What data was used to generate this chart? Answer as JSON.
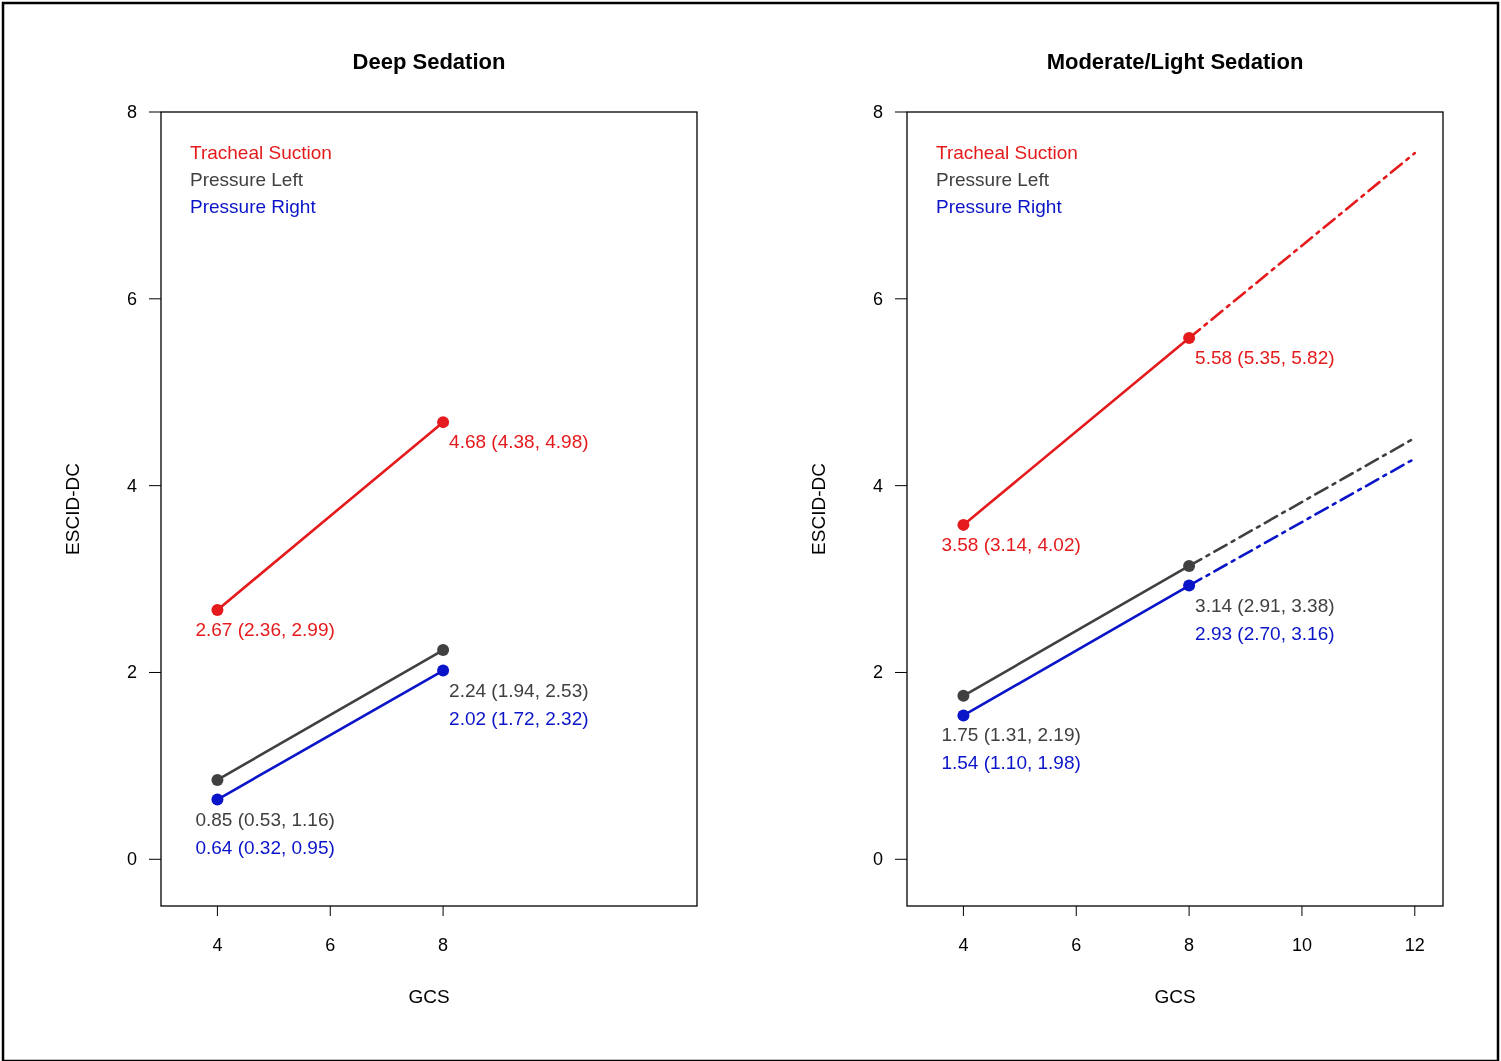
{
  "chart_data": [
    {
      "type": "line",
      "title": "Deep Sedation",
      "xlabel": "GCS",
      "ylabel": "ESCID-DC",
      "xlim": [
        3,
        12.5
      ],
      "xticks": [
        4,
        6,
        8
      ],
      "ylim": [
        -0.5,
        8
      ],
      "yticks": [
        0,
        2,
        4,
        6,
        8
      ],
      "legend": "top left",
      "marker": "circle",
      "line_style": "solid",
      "series": [
        {
          "name": "Tracheal Suction",
          "color": "#e41a1c",
          "x": [
            4,
            8
          ],
          "values": [
            2.67,
            4.68
          ],
          "value_labels": [
            "2.67 (2.36, 2.99)",
            "4.68 (4.38, 4.98)"
          ]
        },
        {
          "name": "Pressure Left",
          "color": "#404040",
          "x": [
            4,
            8
          ],
          "values": [
            0.85,
            2.24
          ],
          "value_labels": [
            "0.85 (0.53, 1.16)",
            "2.24 (1.94, 2.53)"
          ]
        },
        {
          "name": "Pressure Right",
          "color": "#0a14c8",
          "x": [
            4,
            8
          ],
          "values": [
            0.64,
            2.02
          ],
          "value_labels": [
            "0.64 (0.32, 0.95)",
            "2.02 (1.72, 2.32)"
          ]
        }
      ]
    },
    {
      "type": "line",
      "title": "Moderate/Light Sedation",
      "xlabel": "GCS",
      "ylabel": "ESCID-DC",
      "xlim": [
        3,
        12.5
      ],
      "xticks": [
        4,
        6,
        8,
        10,
        12
      ],
      "ylim": [
        -0.5,
        8
      ],
      "yticks": [
        0,
        2,
        4,
        6,
        8
      ],
      "legend": "top left",
      "marker": "circle",
      "line_style": "solid",
      "series": [
        {
          "name": "Tracheal Suction",
          "color": "#e41a1c",
          "x": [
            4,
            8
          ],
          "values": [
            3.58,
            5.58
          ],
          "value_labels": [
            "3.58 (3.14, 4.02)",
            "5.58 (5.35, 5.82)"
          ]
        },
        {
          "name": "Pressure Left",
          "color": "#404040",
          "x": [
            4,
            8
          ],
          "values": [
            1.75,
            3.14
          ],
          "value_labels": [
            "1.75 (1.31, 2.19)",
            "3.14 (2.91, 3.38)"
          ]
        },
        {
          "name": "Pressure Right",
          "color": "#0a14c8",
          "x": [
            4,
            8
          ],
          "values": [
            1.54,
            2.93
          ],
          "value_labels": [
            "1.54 (1.10, 1.98)",
            "2.93 (2.70, 3.16)"
          ]
        },
        {
          "color": "#e41a1c",
          "x": [
            8,
            12
          ],
          "values": [
            5.58,
            7.56
          ],
          "line_style": "dashed",
          "marker": "none"
        },
        {
          "color": "#404040",
          "x": [
            8,
            12
          ],
          "values": [
            3.14,
            4.51
          ],
          "line_style": "dashed",
          "marker": "none"
        },
        {
          "color": "#0a14c8",
          "x": [
            8,
            12
          ],
          "values": [
            2.93,
            4.29
          ],
          "line_style": "dashed",
          "marker": "none"
        }
      ]
    }
  ]
}
